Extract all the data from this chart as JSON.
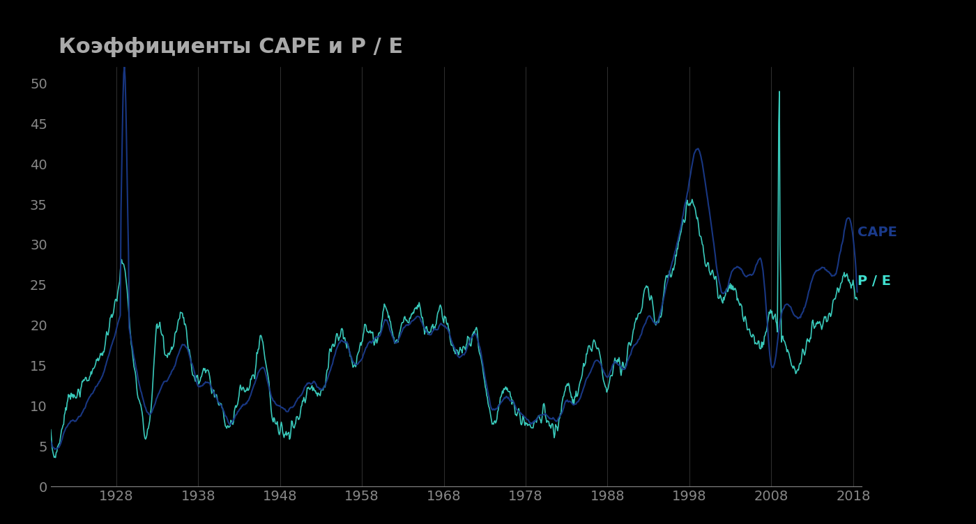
{
  "title": "Коэффициенты CAPE и P / E",
  "title_color": "#aaaaaa",
  "background_color": "#000000",
  "cape_color": "#1a3a8a",
  "pe_color": "#40e0d0",
  "ylim": [
    0,
    52
  ],
  "yticks": [
    0,
    5,
    10,
    15,
    20,
    25,
    30,
    35,
    40,
    45,
    50
  ],
  "xticks": [
    1928,
    1938,
    1948,
    1958,
    1968,
    1978,
    1988,
    1998,
    2008,
    2018
  ],
  "xlim": [
    1920,
    2019
  ],
  "legend_cape": "CAPE",
  "legend_pe": "P / E",
  "cape_label_color": "#1a3a8a",
  "pe_label_color": "#40e0d0",
  "tick_color": "#888888",
  "grid_color": "#333333",
  "vline_color": "#888888"
}
